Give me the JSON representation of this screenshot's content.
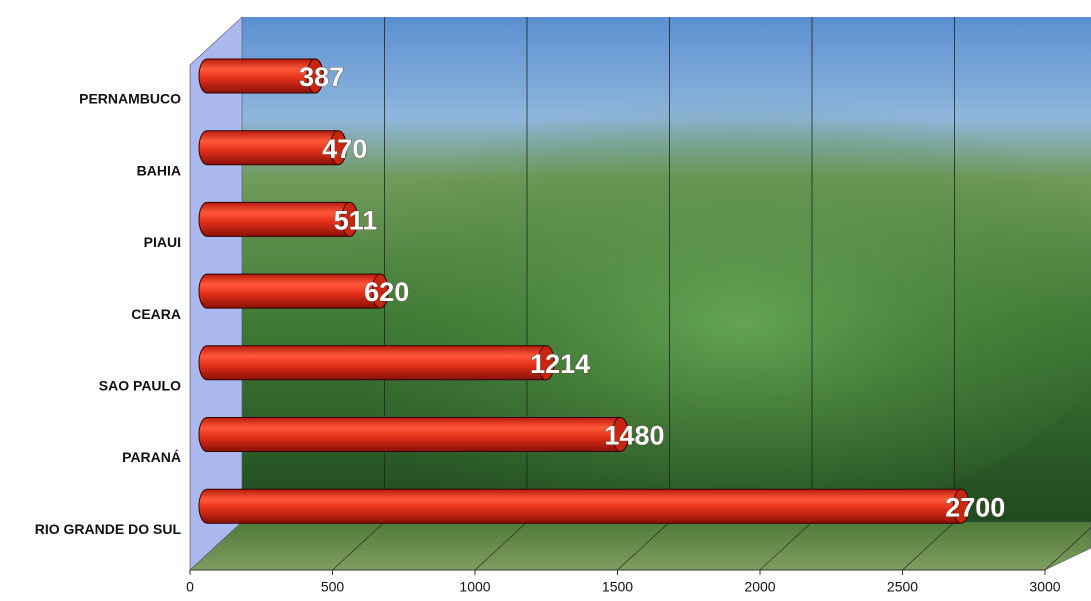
{
  "chart_data": {
    "type": "bar",
    "orientation": "horizontal",
    "categories": [
      "PERNAMBUCO",
      "BAHIA",
      "PIAUI",
      "CEARA",
      "SAO PAULO",
      "PARANÁ",
      "RIO GRANDE DO SUL"
    ],
    "values": [
      387,
      470,
      511,
      620,
      1214,
      1480,
      2700
    ],
    "color": "#e8321c",
    "xlim": [
      0,
      3000
    ],
    "xticks": [
      0,
      500,
      1000,
      1500,
      2000,
      2500,
      3000
    ],
    "grid": true
  }
}
